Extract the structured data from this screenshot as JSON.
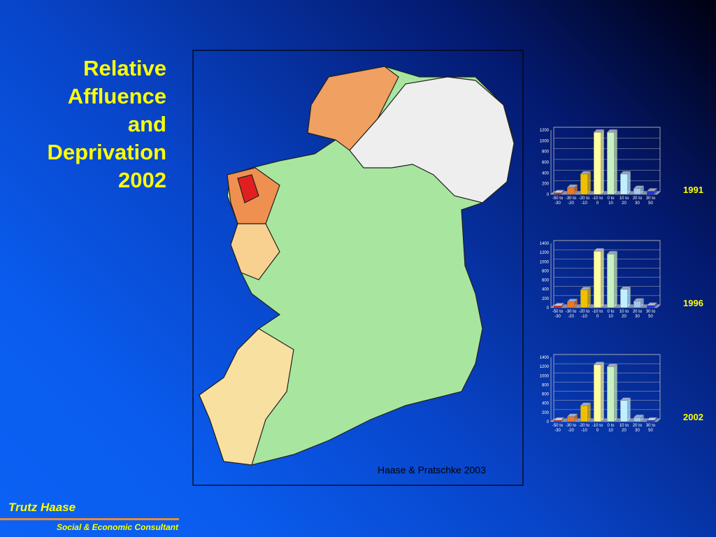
{
  "title": [
    "Relative",
    "Affluence",
    "and",
    "Deprivation",
    "2002"
  ],
  "map": {
    "caption": "Haase & Pratschke 2003"
  },
  "footer": {
    "name": "Trutz Haase",
    "role": "Social & Economic Consultant"
  },
  "chart_data": [
    {
      "type": "bar",
      "label": "1991",
      "categories": [
        "-50 to -30",
        "-30 to -20",
        "-20 to -10",
        "-10 to 0",
        "0 to 10",
        "10 to 20",
        "20 to 30",
        "30 to 50"
      ],
      "values": [
        30,
        130,
        380,
        1160,
        1160,
        380,
        110,
        60
      ],
      "colors": [
        "#e02020",
        "#f07820",
        "#f0c000",
        "#ffffa0",
        "#c8f0c0",
        "#c0f0ff",
        "#a0c8f0",
        "#2030e0"
      ],
      "ylim": [
        0,
        1200
      ],
      "yticks": [
        0,
        200,
        400,
        600,
        800,
        1000,
        1200
      ]
    },
    {
      "type": "bar",
      "label": "1996",
      "categories": [
        "-50 to -30",
        "-30 to -20",
        "-20 to -10",
        "-10 to 0",
        "0 to 10",
        "10 to 20",
        "20 to 30",
        "30 to 50"
      ],
      "values": [
        40,
        130,
        390,
        1230,
        1170,
        400,
        140,
        50
      ],
      "colors": [
        "#e02020",
        "#f07820",
        "#f0c000",
        "#ffffa0",
        "#c8f0c0",
        "#c0f0ff",
        "#a0c8f0",
        "#2030e0"
      ],
      "ylim": [
        0,
        1400
      ],
      "yticks": [
        0,
        200,
        400,
        600,
        800,
        1000,
        1200,
        1400
      ]
    },
    {
      "type": "bar",
      "label": "2002",
      "categories": [
        "-50 to -30",
        "-30 to -20",
        "-20 to -10",
        "-10 to 0",
        "0 to 10",
        "10 to 20",
        "20 to 30",
        "30 to 50"
      ],
      "values": [
        30,
        110,
        350,
        1240,
        1200,
        460,
        90,
        30
      ],
      "colors": [
        "#e02020",
        "#f07820",
        "#f0c000",
        "#ffffa0",
        "#c8f0c0",
        "#c0f0ff",
        "#a0c8f0",
        "#2030e0"
      ],
      "ylim": [
        0,
        1400
      ],
      "yticks": [
        0,
        200,
        400,
        600,
        800,
        1000,
        1200,
        1400
      ]
    }
  ]
}
